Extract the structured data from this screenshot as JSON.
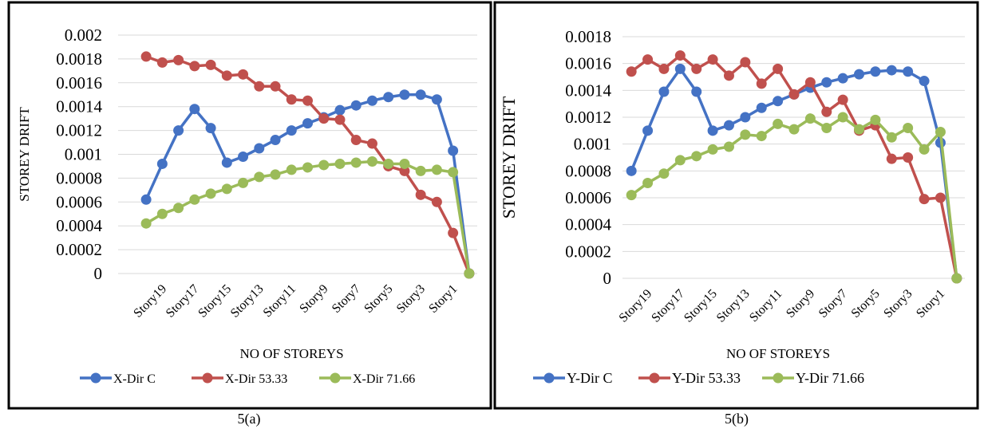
{
  "chart_data": [
    {
      "type": "line",
      "caption": "5(a)",
      "ylabel": "STOREY DRIFT",
      "xlabel": "NO OF STOREYS",
      "categories": [
        null,
        "Story19",
        null,
        "Story17",
        null,
        "Story15",
        null,
        "Story13",
        null,
        "Story11",
        null,
        "Story9",
        null,
        "Story7",
        null,
        "Story5",
        null,
        "Story3",
        null,
        "Story1",
        null
      ],
      "ylim": [
        0,
        0.002
      ],
      "yticks": [
        0,
        0.0002,
        0.0004,
        0.0006,
        0.0008,
        0.001,
        0.0012,
        0.0014,
        0.0016,
        0.0018,
        0.002
      ],
      "grid": true,
      "legend": "bottom",
      "series": [
        {
          "name": "X-Dir C",
          "color": "#4472c4",
          "values": [
            0.00062,
            0.00092,
            0.0012,
            0.00138,
            0.00122,
            0.00093,
            0.00098,
            0.00105,
            0.00112,
            0.0012,
            0.00126,
            0.00131,
            0.00137,
            0.00141,
            0.00145,
            0.00148,
            0.0015,
            0.0015,
            0.00146,
            0.00103,
            0
          ]
        },
        {
          "name": "X-Dir 53.33",
          "color": "#c0504d",
          "values": [
            0.00182,
            0.00177,
            0.00179,
            0.00174,
            0.00175,
            0.00166,
            0.00167,
            0.00157,
            0.00157,
            0.00146,
            0.00145,
            0.0013,
            0.00129,
            0.00112,
            0.00109,
            0.0009,
            0.00086,
            0.00066,
            0.0006,
            0.00034,
            0
          ]
        },
        {
          "name": "X-Dir 71.66",
          "color": "#9bbb59",
          "values": [
            0.00042,
            0.0005,
            0.00055,
            0.00062,
            0.00067,
            0.00071,
            0.00076,
            0.00081,
            0.00083,
            0.00087,
            0.00089,
            0.00091,
            0.00092,
            0.00093,
            0.00094,
            0.00092,
            0.00092,
            0.00086,
            0.00087,
            0.00085,
            0
          ]
        }
      ]
    },
    {
      "type": "line",
      "caption": "5(b)",
      "ylabel": "STOREY DRIFT",
      "xlabel": "NO OF STOREYS",
      "categories": [
        null,
        "Story19",
        null,
        "Story17",
        null,
        "Story15",
        null,
        "Story13",
        null,
        "Story11",
        null,
        "Story9",
        null,
        "Story7",
        null,
        "Story5",
        null,
        "Story3",
        null,
        "Story1",
        null
      ],
      "ylim": [
        0,
        0.0018
      ],
      "yticks": [
        0,
        0.0002,
        0.0004,
        0.0006,
        0.0008,
        0.001,
        0.0012,
        0.0014,
        0.0016,
        0.0018
      ],
      "grid": true,
      "legend": "bottom",
      "series": [
        {
          "name": "Y-Dir C",
          "color": "#4472c4",
          "values": [
            0.0008,
            0.0011,
            0.00139,
            0.00156,
            0.00139,
            0.0011,
            0.00114,
            0.0012,
            0.00127,
            0.00132,
            0.00137,
            0.00142,
            0.00146,
            0.00149,
            0.00152,
            0.00154,
            0.00155,
            0.00154,
            0.00147,
            0.00101,
            0
          ]
        },
        {
          "name": "Y-Dir 53.33",
          "color": "#c0504d",
          "values": [
            0.00154,
            0.00163,
            0.00156,
            0.00166,
            0.00156,
            0.00163,
            0.00151,
            0.00161,
            0.00145,
            0.00156,
            0.00137,
            0.00146,
            0.00124,
            0.00133,
            0.0011,
            0.00114,
            0.00089,
            0.0009,
            0.00059,
            0.0006,
            0
          ]
        },
        {
          "name": "Y-Dir 71.66",
          "color": "#9bbb59",
          "values": [
            0.00062,
            0.00071,
            0.00078,
            0.00088,
            0.00091,
            0.00096,
            0.00098,
            0.00107,
            0.00106,
            0.00115,
            0.00111,
            0.00119,
            0.00112,
            0.0012,
            0.00111,
            0.00118,
            0.00105,
            0.00112,
            0.00096,
            0.00109,
            0
          ]
        }
      ]
    }
  ]
}
